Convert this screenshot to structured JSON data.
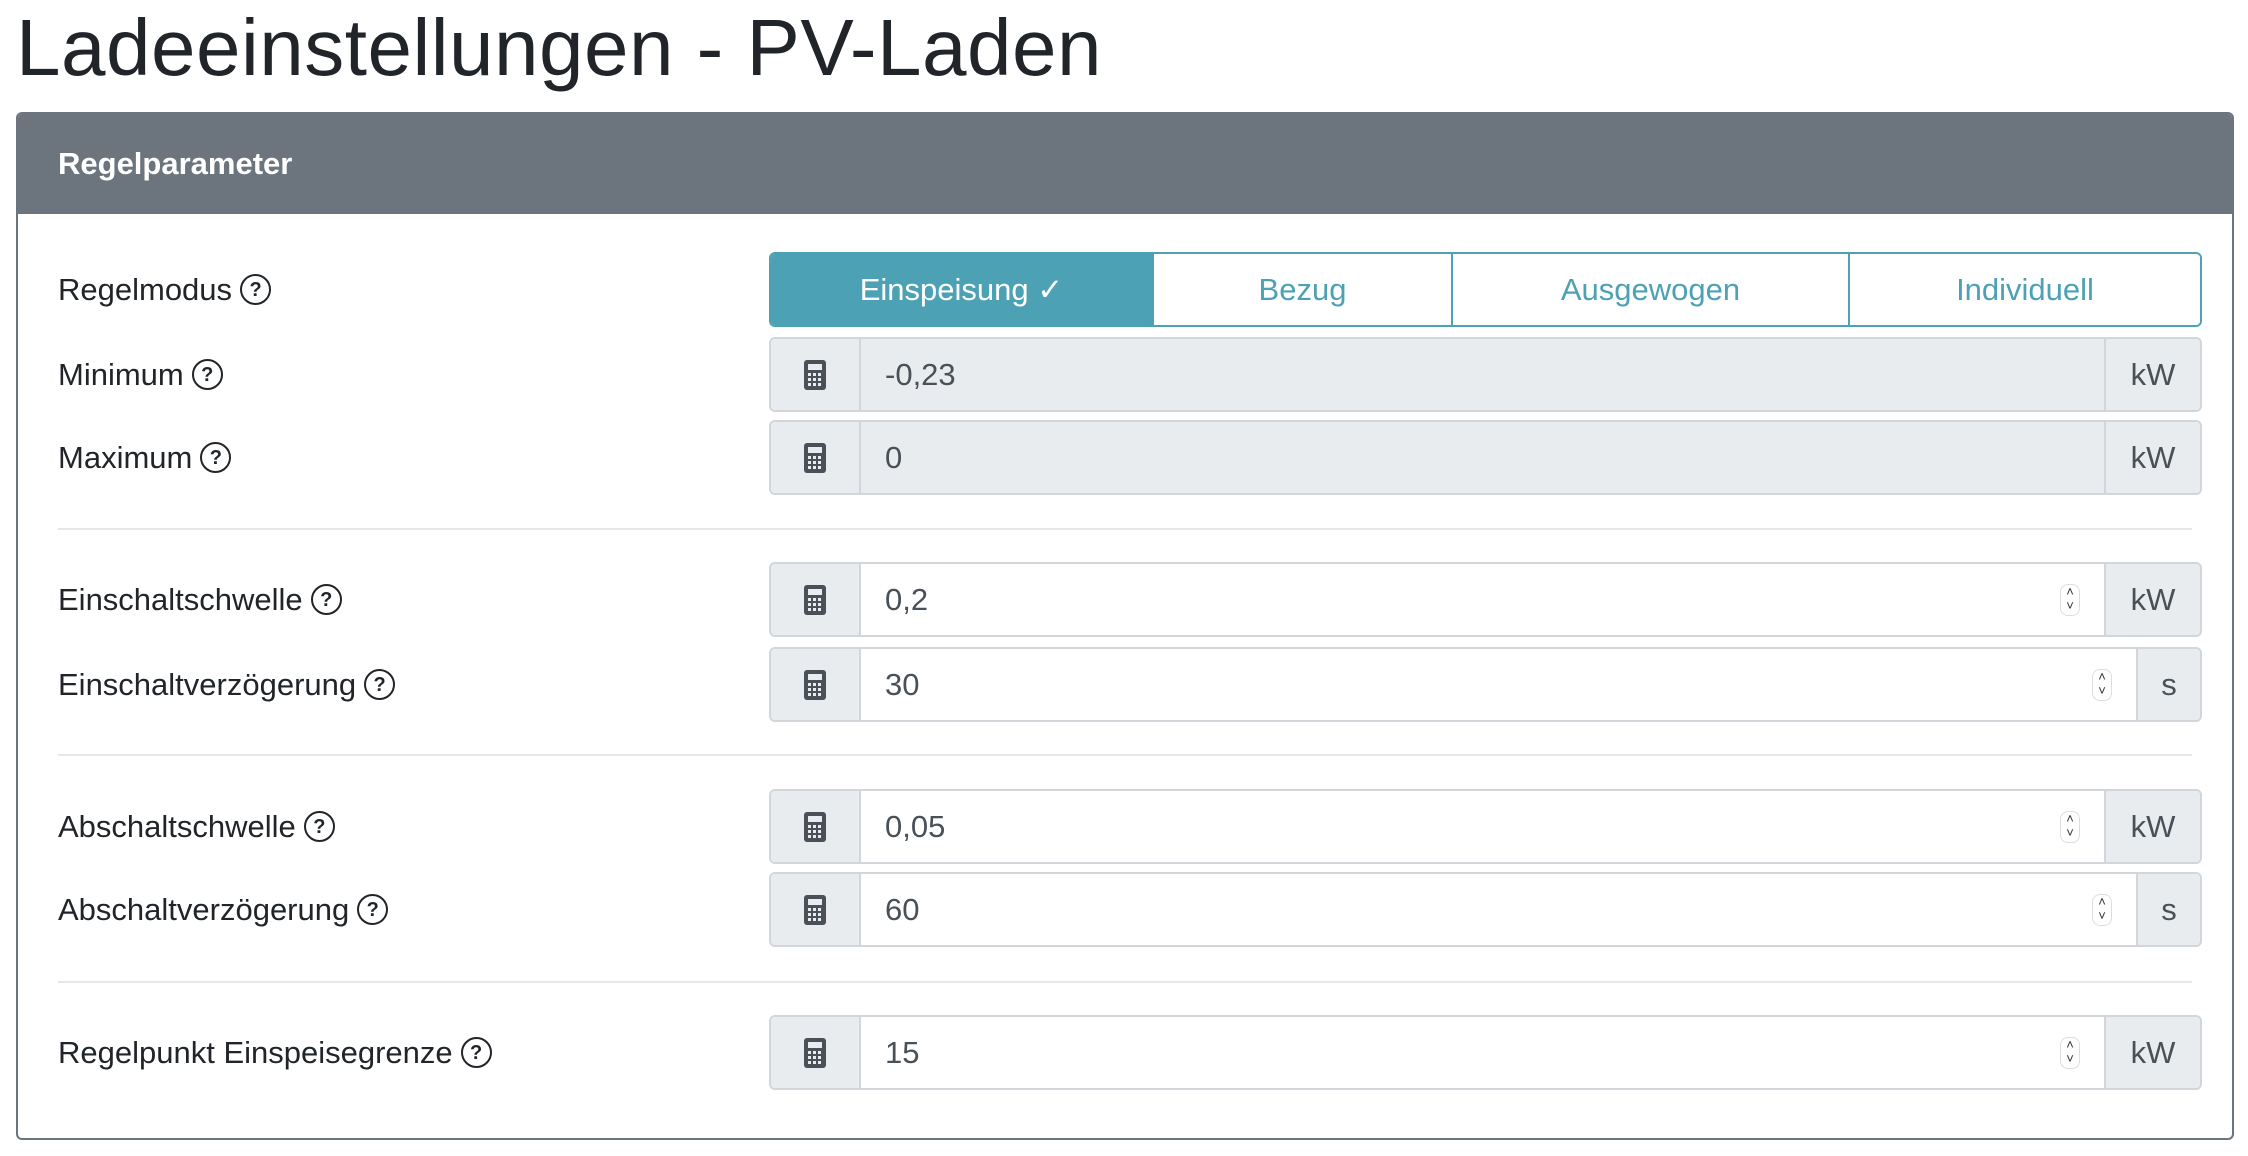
{
  "title": "Ladeeinstellungen - PV-Laden",
  "card": {
    "header": "Regelparameter"
  },
  "colors": {
    "accent": "#4da1b5",
    "header_bg": "#6c757d"
  },
  "regelmodus": {
    "label": "Regelmodus",
    "options": [
      "Einspeisung",
      "Bezug",
      "Ausgewogen",
      "Individuell"
    ],
    "selected": "Einspeisung",
    "check": "✓"
  },
  "fields": [
    {
      "label": "Minimum",
      "value": "-0,23",
      "unit": "kW",
      "readonly": true
    },
    {
      "label": "Maximum",
      "value": "0",
      "unit": "kW",
      "readonly": true
    },
    {
      "label": "Einschaltschwelle",
      "value": "0,2",
      "unit": "kW"
    },
    {
      "label": "Einschaltverzögerung",
      "value": "30",
      "unit": "s"
    },
    {
      "label": "Abschaltschwelle",
      "value": "0,05",
      "unit": "kW"
    },
    {
      "label": "Abschaltverzögerung",
      "value": "60",
      "unit": "s"
    },
    {
      "label": "Regelpunkt Einspeisegrenze",
      "value": "15",
      "unit": "kW"
    }
  ],
  "help_glyph": "?"
}
